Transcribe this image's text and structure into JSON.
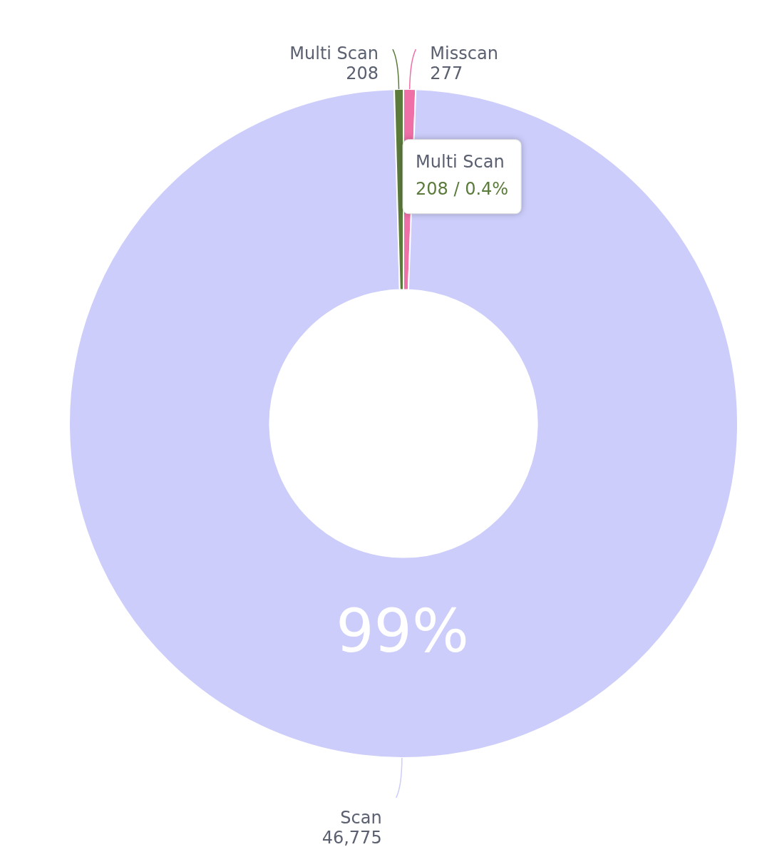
{
  "chart_data": {
    "type": "donut",
    "categories": [
      "Misscan",
      "Scan",
      "Multi Scan"
    ],
    "values": [
      277,
      46775,
      208
    ],
    "colors": [
      "#ef6fa7",
      "#cccdfa",
      "#5b7b3b"
    ],
    "value_labels": [
      "277",
      "46,775",
      "208"
    ],
    "legend": false,
    "annotations": [
      {
        "text": "99%",
        "x": "Scan"
      },
      {
        "text": "Multi Scan",
        "x": "Multi Scan"
      },
      {
        "text": "208 / 0.4%",
        "x": "Multi Scan"
      }
    ]
  }
}
